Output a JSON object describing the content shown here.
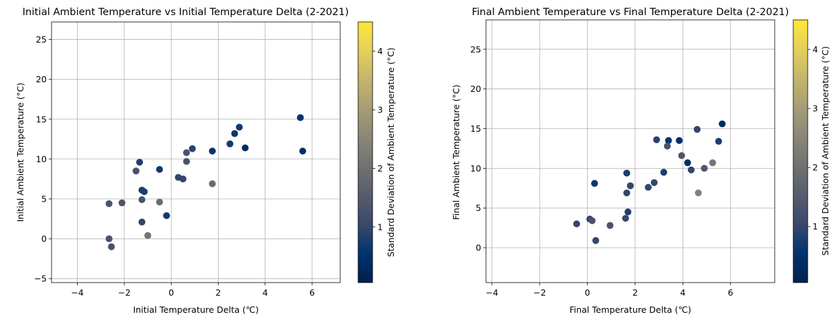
{
  "colormap": {
    "name": "cividis",
    "stops": [
      "#00204d",
      "#00336f",
      "#39486b",
      "#575c6d",
      "#707173",
      "#8a8779",
      "#a69d75",
      "#c4b56c",
      "#e4cf5b",
      "#fee838"
    ]
  },
  "chart_data": [
    {
      "type": "scatter",
      "title": "Initial Ambient Temperature vs Initial Temperature Delta (2-2021)",
      "xlabel": "Initial Temperature Delta (℃)",
      "ylabel": "Initial Ambient Temperature (°C)",
      "xlim": [
        -5.1,
        7.2
      ],
      "ylim": [
        -5.5,
        27.2
      ],
      "xticks": [
        -4,
        -2,
        0,
        2,
        4,
        6
      ],
      "yticks": [
        -5,
        0,
        5,
        10,
        15,
        20,
        25
      ],
      "grid": true,
      "colorbar": {
        "label": "Standard Deviation of Ambient Temperature (°C)",
        "range": [
          0.05,
          4.5
        ],
        "ticks": [
          1,
          2,
          3,
          4
        ]
      },
      "points": [
        {
          "x": 5.5,
          "y": 15.2,
          "c": 0.6
        },
        {
          "x": 5.6,
          "y": 11.0,
          "c": 0.5
        },
        {
          "x": 2.9,
          "y": 14.0,
          "c": 0.7
        },
        {
          "x": 2.7,
          "y": 13.2,
          "c": 0.6
        },
        {
          "x": 2.5,
          "y": 11.9,
          "c": 0.7
        },
        {
          "x": 3.15,
          "y": 11.4,
          "c": 0.3
        },
        {
          "x": 1.75,
          "y": 11.0,
          "c": 0.6
        },
        {
          "x": 1.75,
          "y": 6.9,
          "c": 1.9
        },
        {
          "x": 0.9,
          "y": 11.3,
          "c": 0.9
        },
        {
          "x": 0.65,
          "y": 10.8,
          "c": 1.3
        },
        {
          "x": 0.65,
          "y": 9.7,
          "c": 1.3
        },
        {
          "x": 0.3,
          "y": 7.7,
          "c": 1.0
        },
        {
          "x": 0.5,
          "y": 7.5,
          "c": 1.0
        },
        {
          "x": -0.5,
          "y": 8.7,
          "c": 0.7
        },
        {
          "x": -0.5,
          "y": 4.6,
          "c": 1.9
        },
        {
          "x": -0.2,
          "y": 2.9,
          "c": 0.7
        },
        {
          "x": -1.35,
          "y": 9.6,
          "c": 0.8
        },
        {
          "x": -1.5,
          "y": 8.5,
          "c": 1.3
        },
        {
          "x": -1.25,
          "y": 6.1,
          "c": 0.8
        },
        {
          "x": -1.15,
          "y": 5.9,
          "c": 0.8
        },
        {
          "x": -1.25,
          "y": 4.9,
          "c": 1.3
        },
        {
          "x": -1.25,
          "y": 2.1,
          "c": 1.0
        },
        {
          "x": -1.0,
          "y": 0.4,
          "c": 2.1
        },
        {
          "x": -2.1,
          "y": 4.5,
          "c": 1.4
        },
        {
          "x": -2.65,
          "y": 4.4,
          "c": 1.3
        },
        {
          "x": -2.65,
          "y": 0.0,
          "c": 1.3
        },
        {
          "x": -2.55,
          "y": -1.0,
          "c": 1.3
        }
      ]
    },
    {
      "type": "scatter",
      "title": "Final Ambient Temperature vs Final Temperature Delta (2-2021)",
      "xlabel": "Final Temperature Delta (℃)",
      "ylabel": "Final Ambient Temperature (°C)",
      "xlim": [
        -4.25,
        7.85
      ],
      "ylim": [
        -4.4,
        28.7
      ],
      "xticks": [
        -4,
        -2,
        0,
        2,
        4,
        6
      ],
      "yticks": [
        0,
        5,
        10,
        15,
        20,
        25
      ],
      "grid": true,
      "colorbar": {
        "label": "Standard Deviation of Ambient Temperature (°C)",
        "range": [
          0.05,
          4.5
        ],
        "ticks": [
          1,
          2,
          3,
          4
        ]
      },
      "points": [
        {
          "x": 5.65,
          "y": 15.6,
          "c": 0.4
        },
        {
          "x": 4.6,
          "y": 14.9,
          "c": 1.0
        },
        {
          "x": 5.5,
          "y": 13.4,
          "c": 0.8
        },
        {
          "x": 2.9,
          "y": 13.6,
          "c": 0.9
        },
        {
          "x": 3.4,
          "y": 13.5,
          "c": 0.6
        },
        {
          "x": 3.85,
          "y": 13.5,
          "c": 0.5
        },
        {
          "x": 3.35,
          "y": 12.8,
          "c": 1.3
        },
        {
          "x": 3.95,
          "y": 11.6,
          "c": 1.4
        },
        {
          "x": 4.2,
          "y": 10.7,
          "c": 0.4
        },
        {
          "x": 5.25,
          "y": 10.7,
          "c": 2.1
        },
        {
          "x": 4.9,
          "y": 10.0,
          "c": 1.4
        },
        {
          "x": 4.35,
          "y": 9.8,
          "c": 1.0
        },
        {
          "x": 3.2,
          "y": 9.5,
          "c": 0.8
        },
        {
          "x": 1.65,
          "y": 9.4,
          "c": 0.8
        },
        {
          "x": 0.3,
          "y": 8.1,
          "c": 0.6
        },
        {
          "x": 2.8,
          "y": 8.2,
          "c": 1.0
        },
        {
          "x": 1.8,
          "y": 7.8,
          "c": 1.0
        },
        {
          "x": 2.55,
          "y": 7.6,
          "c": 1.0
        },
        {
          "x": 1.65,
          "y": 6.9,
          "c": 1.0
        },
        {
          "x": 4.65,
          "y": 6.9,
          "c": 2.4
        },
        {
          "x": 1.7,
          "y": 4.5,
          "c": 0.8
        },
        {
          "x": 1.6,
          "y": 3.7,
          "c": 1.0
        },
        {
          "x": 0.1,
          "y": 3.6,
          "c": 1.0
        },
        {
          "x": 0.2,
          "y": 3.4,
          "c": 1.3
        },
        {
          "x": -0.45,
          "y": 3.0,
          "c": 1.0
        },
        {
          "x": 0.95,
          "y": 2.8,
          "c": 1.3
        },
        {
          "x": 0.35,
          "y": 0.9,
          "c": 1.0
        }
      ]
    }
  ]
}
